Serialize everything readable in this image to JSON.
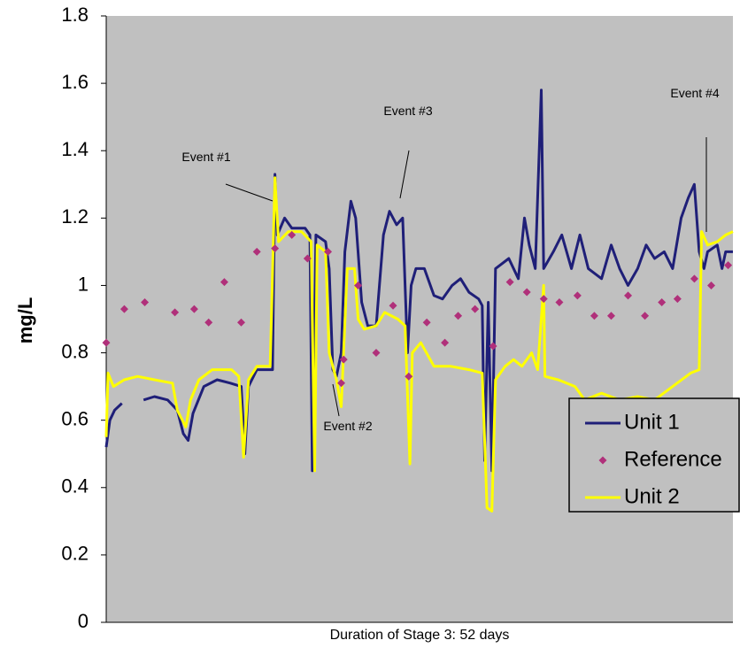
{
  "chart_data": {
    "type": "line",
    "xlabel": "Duration of Stage 3: 52 days",
    "ylabel": "mg/L",
    "xlim": [
      0,
      52
    ],
    "ylim": [
      0,
      1.8
    ],
    "yticks": [
      0,
      0.2,
      0.4,
      0.6,
      0.8,
      1,
      1.2,
      1.4,
      1.6,
      1.8
    ],
    "grid": false,
    "background": "#c0c0c0",
    "legend": "right",
    "series": [
      {
        "name": "Unit 1",
        "color": "#1f1f78",
        "mode": "line",
        "x": [
          0,
          0.3,
          0.7,
          1.3,
          2,
          3.1,
          4.0,
          5.1,
          5.9,
          6.4,
          6.8,
          7.2,
          8.1,
          9.2,
          10.3,
          11.2,
          11.5,
          11.8,
          12.5,
          13.2,
          13.8,
          14.0,
          14.2,
          14.8,
          15.4,
          16.5,
          16.9,
          17.1,
          17.4,
          18.2,
          18.5,
          18.8,
          19.1,
          19.5,
          19.8,
          20.3,
          20.7,
          21.2,
          21.7,
          22.4,
          23.0,
          23.5,
          24.1,
          24.6,
          25.0,
          25.3,
          25.7,
          26.4,
          27.2,
          27.9,
          28.7,
          29.4,
          30.1,
          30.9,
          31.2,
          31.4,
          31.7,
          32.0,
          32.3,
          33.4,
          34.2,
          34.7,
          35.1,
          35.6,
          36.1,
          36.3,
          37.1,
          37.8,
          38.6,
          39.3,
          40.0,
          41.1,
          41.9,
          42.6,
          43.3,
          44.1,
          44.8,
          45.5,
          46.3,
          47.0,
          47.7,
          48.3,
          48.8,
          49.2,
          49.6,
          49.9,
          50.7,
          51.1,
          51.4,
          52
        ],
        "values": [
          0.52,
          0.6,
          0.63,
          0.65,
          null,
          0.66,
          0.67,
          0.66,
          0.63,
          0.56,
          0.54,
          0.62,
          0.7,
          0.72,
          0.71,
          0.7,
          0.5,
          0.7,
          0.75,
          0.75,
          0.75,
          1.33,
          1.15,
          1.2,
          1.17,
          1.17,
          1.15,
          0.45,
          1.15,
          1.13,
          1.05,
          0.75,
          0.73,
          0.8,
          1.1,
          1.25,
          1.2,
          0.95,
          0.88,
          0.88,
          1.15,
          1.22,
          1.18,
          1.2,
          0.8,
          1.0,
          1.05,
          1.05,
          0.97,
          0.96,
          1.0,
          1.02,
          0.98,
          0.96,
          0.94,
          0.48,
          0.95,
          0.45,
          1.05,
          1.08,
          1.02,
          1.2,
          1.12,
          1.05,
          1.58,
          1.05,
          1.1,
          1.15,
          1.05,
          1.15,
          1.05,
          1.02,
          1.12,
          1.05,
          1.0,
          1.05,
          1.12,
          1.08,
          1.1,
          1.05,
          1.2,
          1.26,
          1.3,
          1.1,
          1.05,
          1.1,
          1.12,
          1.05,
          1.1,
          1.1
        ]
      },
      {
        "name": "Reference",
        "color": "#b0307a",
        "mode": "markers",
        "x": [
          0,
          1.5,
          3.2,
          5.7,
          7.3,
          8.5,
          9.8,
          11.2,
          12.5,
          14.0,
          15.4,
          16.7,
          18.4,
          19.5,
          19.7,
          20.9,
          22.4,
          23.8,
          25.1,
          26.6,
          28.1,
          29.2,
          30.6,
          32.1,
          33.5,
          34.9,
          36.3,
          37.6,
          39.1,
          40.5,
          41.9,
          43.3,
          44.7,
          46.1,
          47.4,
          48.8,
          50.2,
          51.6
        ],
        "values": [
          0.83,
          0.93,
          0.95,
          0.92,
          0.93,
          0.89,
          1.01,
          0.89,
          1.1,
          1.11,
          1.15,
          1.08,
          1.1,
          0.71,
          0.78,
          1.0,
          0.8,
          0.94,
          0.73,
          0.89,
          0.83,
          0.91,
          0.93,
          0.82,
          1.01,
          0.98,
          0.96,
          0.95,
          0.97,
          0.91,
          0.91,
          0.97,
          0.91,
          0.95,
          0.96,
          1.02,
          1.0,
          1.06
        ]
      },
      {
        "name": "Unit 2",
        "color": "#ffff00",
        "mode": "line",
        "x": [
          0,
          0.15,
          0.6,
          1.5,
          2.6,
          4.0,
          5.5,
          5.9,
          6.6,
          7.0,
          7.7,
          8.8,
          10.4,
          11.0,
          11.4,
          11.8,
          12.5,
          13.6,
          14.0,
          14.3,
          15.1,
          16.2,
          17.0,
          17.3,
          17.5,
          18.2,
          18.5,
          19.1,
          19.5,
          20.0,
          20.6,
          20.9,
          21.4,
          22.4,
          23.1,
          24.2,
          24.8,
          25.2,
          25.4,
          26.1,
          27.2,
          28.6,
          30.1,
          31.2,
          31.6,
          32.0,
          32.3,
          33.1,
          33.8,
          34.5,
          35.3,
          35.8,
          36.3,
          36.4,
          37.5,
          38.9,
          39.7,
          41.1,
          42.6,
          44.1,
          45.5,
          47.0,
          48.5,
          49.2,
          49.4,
          49.9,
          50.7,
          51.4,
          52
        ],
        "values": [
          0.55,
          0.74,
          0.7,
          0.72,
          0.73,
          0.72,
          0.71,
          0.63,
          0.58,
          0.66,
          0.72,
          0.75,
          0.75,
          0.73,
          0.49,
          0.72,
          0.76,
          0.76,
          1.32,
          1.13,
          1.16,
          1.16,
          1.13,
          0.45,
          1.12,
          1.1,
          0.8,
          0.72,
          0.64,
          1.05,
          1.05,
          0.9,
          0.87,
          0.88,
          0.92,
          0.9,
          0.88,
          0.47,
          0.8,
          0.83,
          0.76,
          0.76,
          0.75,
          0.74,
          0.34,
          0.33,
          0.72,
          0.76,
          0.78,
          0.76,
          0.8,
          0.75,
          1.0,
          0.73,
          0.72,
          0.7,
          0.66,
          0.68,
          0.66,
          0.67,
          0.66,
          0.7,
          0.74,
          0.75,
          1.16,
          1.12,
          1.13,
          1.15,
          1.16
        ]
      }
    ],
    "annotations": [
      "Event #1",
      "Event #2",
      "Event #3",
      "Event #4"
    ]
  }
}
